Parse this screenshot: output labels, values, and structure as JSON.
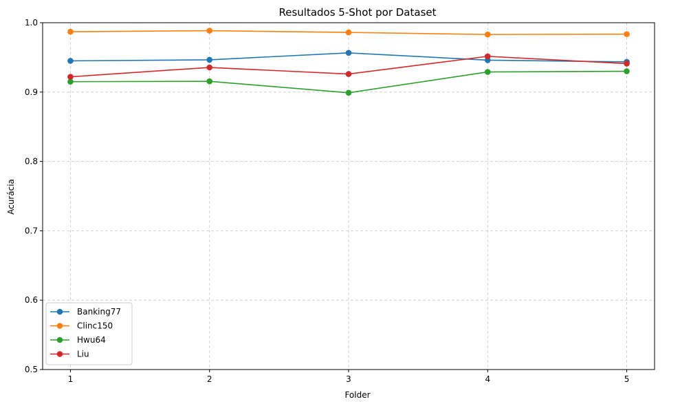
{
  "chart_data": {
    "type": "line",
    "title": "Resultados 5-Shot por Dataset",
    "xlabel": "Folder",
    "ylabel": "Acurácia",
    "x": [
      1,
      2,
      3,
      4,
      5
    ],
    "xticks": [
      "1",
      "2",
      "3",
      "4",
      "5"
    ],
    "ylim": [
      0.5,
      1.0
    ],
    "yticks": [
      "0.5",
      "0.6",
      "0.7",
      "0.8",
      "0.9",
      "1.0"
    ],
    "grid": true,
    "grid_style": "dashed",
    "legend_position": "lower-left",
    "marker": "circle",
    "series": [
      {
        "name": "Banking77",
        "color": "#1f77b4",
        "values": [
          0.945,
          0.9465,
          0.9565,
          0.946,
          0.9435
        ]
      },
      {
        "name": "Clinc150",
        "color": "#ff7f0e",
        "values": [
          0.987,
          0.9885,
          0.986,
          0.983,
          0.9835
        ]
      },
      {
        "name": "Hwu64",
        "color": "#2ca02c",
        "values": [
          0.915,
          0.9155,
          0.899,
          0.929,
          0.93
        ]
      },
      {
        "name": "Liu",
        "color": "#d62728",
        "values": [
          0.922,
          0.9355,
          0.926,
          0.9515,
          0.941
        ]
      }
    ]
  }
}
